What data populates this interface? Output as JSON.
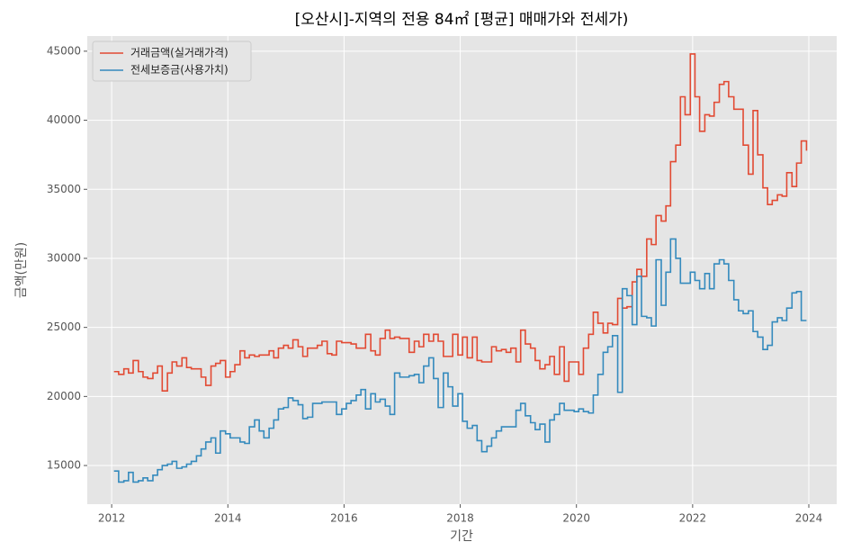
{
  "chart_data": {
    "type": "step",
    "title": "[오산시]-지역의 전용 84㎡ [평균] 매매가와 전세가)",
    "xlabel": "기간",
    "ylabel": "금액(만원)",
    "x": [
      2012.04,
      2012.12,
      2012.21,
      2012.29,
      2012.37,
      2012.46,
      2012.54,
      2012.62,
      2012.71,
      2012.79,
      2012.87,
      2012.96,
      2013.04,
      2013.12,
      2013.21,
      2013.29,
      2013.37,
      2013.46,
      2013.54,
      2013.62,
      2013.71,
      2013.79,
      2013.87,
      2013.96,
      2014.04,
      2014.12,
      2014.21,
      2014.29,
      2014.37,
      2014.46,
      2014.54,
      2014.62,
      2014.71,
      2014.79,
      2014.87,
      2014.96,
      2015.04,
      2015.12,
      2015.21,
      2015.29,
      2015.37,
      2015.46,
      2015.54,
      2015.62,
      2015.71,
      2015.79,
      2015.87,
      2015.96,
      2016.04,
      2016.12,
      2016.21,
      2016.29,
      2016.37,
      2016.46,
      2016.54,
      2016.62,
      2016.71,
      2016.79,
      2016.87,
      2016.96,
      2017.04,
      2017.12,
      2017.21,
      2017.29,
      2017.37,
      2017.46,
      2017.54,
      2017.62,
      2017.71,
      2017.79,
      2017.87,
      2017.96,
      2018.04,
      2018.12,
      2018.21,
      2018.29,
      2018.37,
      2018.46,
      2018.54,
      2018.62,
      2018.71,
      2018.79,
      2018.87,
      2018.96,
      2019.04,
      2019.12,
      2019.21,
      2019.29,
      2019.37,
      2019.46,
      2019.54,
      2019.62,
      2019.71,
      2019.79,
      2019.87,
      2019.96,
      2020.04,
      2020.12,
      2020.21,
      2020.29,
      2020.37,
      2020.46,
      2020.54,
      2020.62,
      2020.71,
      2020.79,
      2020.87,
      2020.96,
      2021.04,
      2021.12,
      2021.21,
      2021.29,
      2021.37,
      2021.46,
      2021.54,
      2021.62,
      2021.71,
      2021.79,
      2021.87,
      2021.96,
      2022.04,
      2022.12,
      2022.21,
      2022.29,
      2022.37,
      2022.46,
      2022.54,
      2022.62,
      2022.71,
      2022.79,
      2022.87,
      2022.96,
      2023.04,
      2023.12,
      2023.21,
      2023.29,
      2023.37,
      2023.46,
      2023.54,
      2023.62,
      2023.71,
      2023.79,
      2023.87,
      2023.96
    ],
    "series": [
      {
        "name": "거래금액(실거래가격)",
        "color": "#E24A33",
        "values": [
          21800,
          21600,
          22000,
          21700,
          22600,
          21800,
          21400,
          21300,
          21700,
          22200,
          20400,
          21700,
          22500,
          22200,
          22800,
          22100,
          22000,
          22000,
          21400,
          20800,
          22200,
          22400,
          22600,
          21400,
          21800,
          22300,
          23300,
          22800,
          23000,
          22900,
          23000,
          23000,
          23300,
          22800,
          23500,
          23700,
          23500,
          24100,
          23600,
          22900,
          23500,
          23500,
          23700,
          24000,
          23100,
          23000,
          24000,
          23900,
          23900,
          23800,
          23500,
          23500,
          24500,
          23300,
          23000,
          24200,
          24800,
          24200,
          24300,
          24200,
          24200,
          23200,
          24000,
          23600,
          24500,
          24000,
          24500,
          24000,
          22900,
          22900,
          24500,
          23000,
          24300,
          22800,
          24300,
          22600,
          22500,
          22500,
          23600,
          23300,
          23400,
          23200,
          23500,
          22500,
          24800,
          23800,
          23500,
          22600,
          22000,
          22300,
          22900,
          21600,
          23600,
          21100,
          22500,
          22500,
          21600,
          23500,
          24500,
          26100,
          25300,
          24600,
          25300,
          25200,
          27100,
          26400,
          26500,
          28300,
          29200,
          28700,
          31400,
          31000,
          33100,
          32700,
          33800,
          37000,
          38200,
          41700,
          40400,
          44800,
          41700,
          39200,
          40400,
          40300,
          41300,
          42600,
          42800,
          41700,
          40800,
          40800,
          38200,
          36100,
          40700,
          37500,
          35100,
          33900,
          34200,
          34600,
          34500,
          36200,
          35200,
          36900,
          38500,
          37800
        ]
      },
      {
        "name": "전세보증금(사용가치)",
        "color": "#348ABD",
        "values": [
          14600,
          13800,
          13900,
          14500,
          13800,
          13900,
          14100,
          13900,
          14300,
          14700,
          15000,
          15100,
          15300,
          14800,
          14900,
          15100,
          15300,
          15700,
          16200,
          16700,
          17000,
          15900,
          17500,
          17300,
          17000,
          17000,
          16700,
          16600,
          17800,
          18300,
          17500,
          17000,
          17700,
          18300,
          19100,
          19200,
          19900,
          19700,
          19400,
          18400,
          18500,
          19500,
          19500,
          19600,
          19600,
          19600,
          18700,
          19100,
          19500,
          19700,
          20100,
          20500,
          19100,
          20200,
          19600,
          19800,
          19300,
          18700,
          21700,
          21400,
          21400,
          21500,
          21600,
          21000,
          22200,
          22800,
          21300,
          19200,
          21700,
          20700,
          19300,
          20200,
          18200,
          17700,
          17900,
          16800,
          16000,
          16400,
          17000,
          17500,
          17800,
          17800,
          17800,
          19000,
          19500,
          18600,
          18100,
          17600,
          18000,
          16700,
          18300,
          18700,
          19500,
          19000,
          19000,
          18900,
          19100,
          18900,
          18800,
          20100,
          21600,
          23200,
          23600,
          24400,
          20300,
          27800,
          27300,
          25200,
          28700,
          25800,
          25700,
          25100,
          29900,
          26600,
          29000,
          31400,
          30000,
          28200,
          28200,
          29000,
          28400,
          27800,
          28900,
          27800,
          29600,
          29900,
          29600,
          28400,
          27000,
          26200,
          26000,
          26200,
          24700,
          24300,
          23400,
          23700,
          25400,
          25700,
          25500,
          26400,
          27500,
          27600,
          25500,
          25500
        ]
      }
    ],
    "xlim": [
      2011.58,
      2024.48
    ],
    "xticks": [
      2012,
      2014,
      2016,
      2018,
      2020,
      2022,
      2024
    ],
    "ylim": [
      12200,
      46100
    ],
    "yticks": [
      15000,
      20000,
      25000,
      30000,
      35000,
      40000,
      45000
    ],
    "grid": true,
    "legend": "upper left"
  }
}
